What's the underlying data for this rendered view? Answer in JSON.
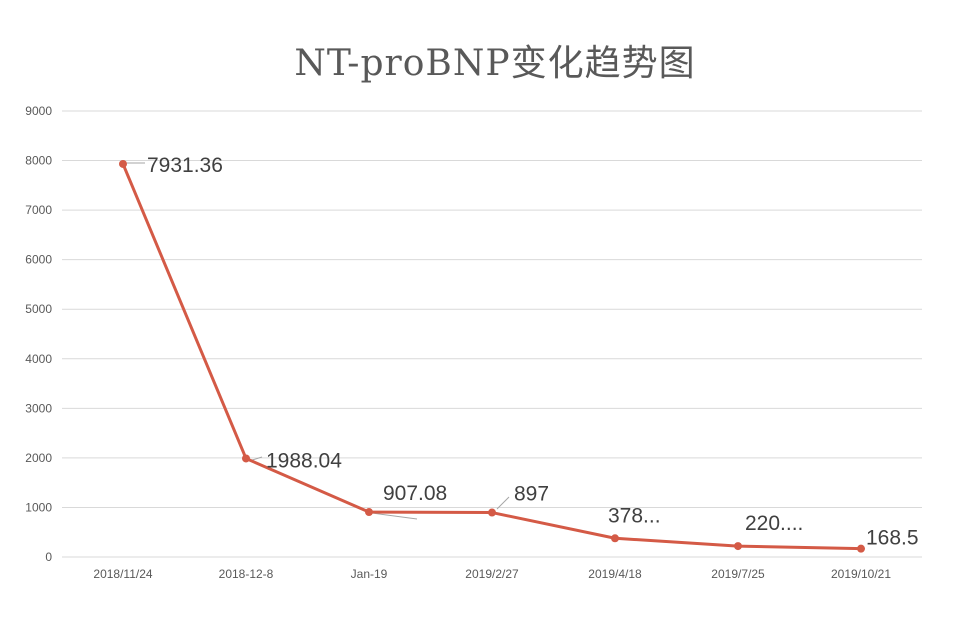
{
  "chart_data": {
    "type": "line",
    "title": "NT-proBNP变化趋势图",
    "categories": [
      "2018/11/24",
      "2018-12-8",
      "Jan-19",
      "2019/2/27",
      "2019/4/18",
      "2019/7/25",
      "2019/10/21"
    ],
    "series": [
      {
        "values": [
          7931.36,
          1988.04,
          907.08,
          897,
          378,
          220,
          168.5
        ],
        "data_labels": [
          "7931.36",
          "1988.04",
          "907.08",
          "897",
          "378...",
          "220....",
          "168.5"
        ]
      }
    ],
    "ylim": [
      0,
      9000
    ],
    "yticks": [
      0,
      1000,
      2000,
      3000,
      4000,
      5000,
      6000,
      7000,
      8000,
      9000
    ],
    "grid": true,
    "legend": "none",
    "colors": {
      "line": "#D45A46",
      "grid": "#D9D9D9",
      "text": "#595959"
    }
  }
}
